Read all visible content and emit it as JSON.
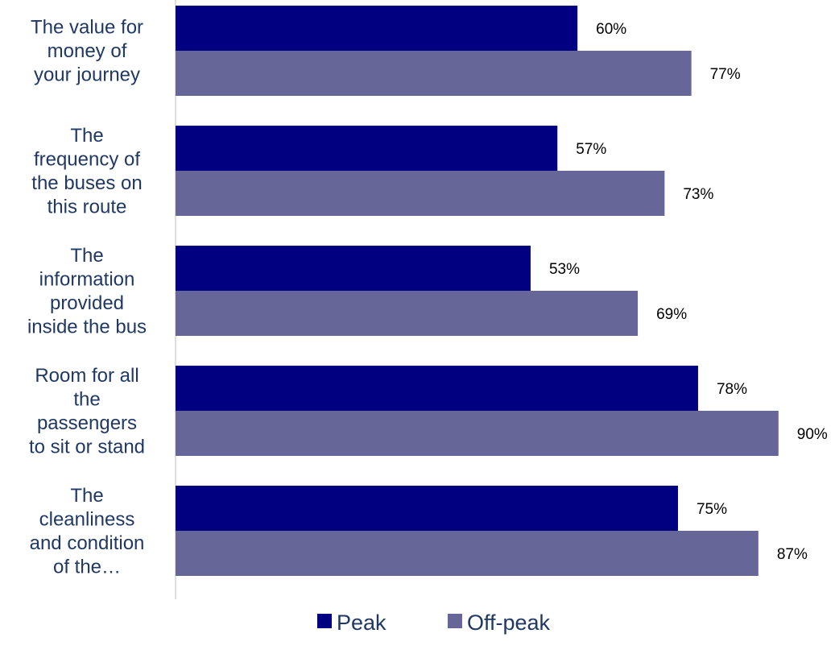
{
  "chart_data": {
    "type": "bar",
    "orientation": "horizontal",
    "categories": [
      [
        "The value for",
        "money of",
        "your journey"
      ],
      [
        "The",
        "frequency of",
        "the buses on",
        "this route"
      ],
      [
        "The",
        "information",
        "provided",
        "inside the bus"
      ],
      [
        "Room for all",
        "the",
        "passengers",
        "to sit or stand"
      ],
      [
        "The",
        "cleanliness",
        "and condition",
        "of the…"
      ]
    ],
    "series": [
      {
        "name": "Peak",
        "color": "#000080",
        "values": [
          60,
          57,
          53,
          78,
          75
        ]
      },
      {
        "name": "Off-peak",
        "color": "#666699",
        "values": [
          77,
          73,
          69,
          90,
          87
        ]
      }
    ],
    "value_labels": [
      [
        "60%",
        "57%",
        "53%",
        "78%",
        "75%"
      ],
      [
        "77%",
        "73%",
        "69%",
        "90%",
        "87%"
      ]
    ],
    "xlim": [
      0,
      100
    ],
    "grid": false,
    "legend_position": "bottom"
  }
}
